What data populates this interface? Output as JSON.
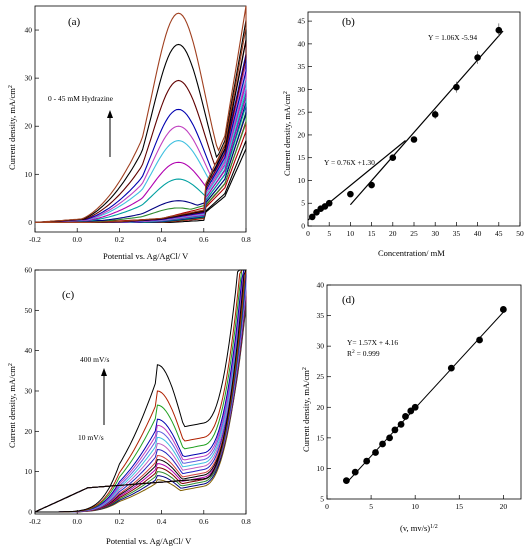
{
  "chart_data": [
    {
      "panel": "(a)",
      "type": "line",
      "xlabel": "Potential vs. Ag/AgCl/ V",
      "ylabel": "Current density, mA/cm",
      "ylabel_sup": "2",
      "xlim": [
        -0.2,
        0.8
      ],
      "ylim": [
        -2,
        45
      ],
      "xticks": [
        -0.2,
        0.0,
        0.2,
        0.4,
        0.6,
        0.8
      ],
      "xtick_labels": [
        "-0.2",
        "0.0",
        "0.2",
        "0.4",
        "0.6",
        "0.8"
      ],
      "yticks": [
        0,
        10,
        20,
        30,
        40
      ],
      "ytick_labels": [
        "0",
        "10",
        "20",
        "30",
        "40"
      ],
      "annotation": "0 - 45 mM Hydrazine",
      "series": [
        {
          "color": "#000000",
          "peak": 0.0,
          "base": [
            0,
            0.2,
            0.5,
            2,
            6,
            17
          ]
        },
        {
          "color": "#b00000",
          "peak": 0.5,
          "base": [
            0,
            0.3,
            0.8,
            3,
            8,
            21
          ]
        },
        {
          "color": "#2e8b2e",
          "peak": 3.0,
          "base": [
            0,
            0.4,
            1.0,
            3.5,
            9,
            23
          ]
        },
        {
          "color": "#000080",
          "peak": 4.5,
          "base": [
            0,
            0.5,
            1.2,
            4,
            10,
            25
          ]
        },
        {
          "color": "#00a0a0",
          "peak": 9.0,
          "base": [
            0,
            0.6,
            1.5,
            4.5,
            11,
            27
          ]
        },
        {
          "color": "#b000b0",
          "peak": 12.5,
          "base": [
            0,
            0.7,
            1.8,
            5,
            12,
            29
          ]
        },
        {
          "color": "#40c0e0",
          "peak": 17.0,
          "base": [
            0,
            0.8,
            2.0,
            5.5,
            13,
            31
          ]
        },
        {
          "color": "#c040c0",
          "peak": 20.0,
          "base": [
            0,
            0.9,
            2.2,
            6,
            14,
            33
          ]
        },
        {
          "color": "#0000b0",
          "peak": 23.5,
          "base": [
            0,
            1.0,
            2.5,
            6.5,
            15,
            35
          ]
        },
        {
          "color": "#600000",
          "peak": 29.5,
          "base": [
            0,
            1.1,
            2.8,
            7,
            16,
            38
          ]
        },
        {
          "color": "#000000",
          "peak": 37.0,
          "base": [
            0,
            1.2,
            3.0,
            7.5,
            17,
            42
          ]
        },
        {
          "color": "#a04020",
          "peak": 43.5,
          "base": [
            0,
            1.3,
            3.2,
            8,
            18,
            45
          ]
        }
      ]
    },
    {
      "panel": "(b)",
      "type": "scatter",
      "xlabel": "Concentration/ mM",
      "ylabel": "Current density, mA/cm",
      "ylabel_sup": "2",
      "xlim": [
        0,
        50
      ],
      "ylim": [
        0,
        47
      ],
      "xticks": [
        0,
        5,
        10,
        15,
        20,
        25,
        30,
        35,
        40,
        45,
        50
      ],
      "xtick_labels": [
        "0",
        "5",
        "10",
        "15",
        "20",
        "25",
        "30",
        "35",
        "40",
        "45",
        "50"
      ],
      "yticks": [
        0,
        5,
        10,
        15,
        20,
        25,
        30,
        35,
        40,
        45
      ],
      "ytick_labels": [
        "0",
        "5",
        "10",
        "15",
        "20",
        "25",
        "30",
        "35",
        "40",
        "45"
      ],
      "points": [
        {
          "x": 1,
          "y": 2
        },
        {
          "x": 2,
          "y": 3
        },
        {
          "x": 3,
          "y": 3.8
        },
        {
          "x": 4,
          "y": 4.3
        },
        {
          "x": 5,
          "y": 5
        },
        {
          "x": 10,
          "y": 7
        },
        {
          "x": 15,
          "y": 9
        },
        {
          "x": 20,
          "y": 15
        },
        {
          "x": 25,
          "y": 19
        },
        {
          "x": 30,
          "y": 24.5
        },
        {
          "x": 35,
          "y": 30.5
        },
        {
          "x": 40,
          "y": 37
        },
        {
          "x": 45,
          "y": 43
        }
      ],
      "errors": [
        0.3,
        0.3,
        0.3,
        0.3,
        0.4,
        0.4,
        0.5,
        0.6,
        0.6,
        1.0,
        1.2,
        1.4,
        1.5
      ],
      "fits": [
        {
          "label": "Y = 0.76X +1.30",
          "slope": 0.76,
          "intercept": 1.3,
          "x_range": [
            0,
            23
          ]
        },
        {
          "label": "Y = 1.06X -5.94",
          "slope": 1.06,
          "intercept": -5.94,
          "x_range": [
            10,
            46
          ]
        }
      ]
    },
    {
      "panel": "(c)",
      "type": "line",
      "xlabel": "Potential vs. Ag/AgCl/ V",
      "ylabel": "Current density, mA/cm",
      "ylabel_sup": "2",
      "xlim": [
        -0.2,
        0.8
      ],
      "ylim": [
        -0.5,
        60
      ],
      "xticks": [
        -0.2,
        0.0,
        0.2,
        0.4,
        0.6,
        0.8
      ],
      "xtick_labels": [
        "-0.2",
        "0.0",
        "0.2",
        "0.4",
        "0.6",
        "0.8"
      ],
      "yticks": [
        0,
        10,
        20,
        30,
        40,
        50,
        60
      ],
      "ytick_labels": [
        "0",
        "10",
        "20",
        "30",
        "40",
        "50",
        "60"
      ],
      "annotation_top": "400 mV/s",
      "annotation_bottom": "10 mV/s",
      "series": [
        {
          "color": "#806000",
          "peak": 8
        },
        {
          "color": "#000080",
          "peak": 9
        },
        {
          "color": "#2e8b2e",
          "peak": 10
        },
        {
          "color": "#800000",
          "peak": 11
        },
        {
          "color": "#b000b0",
          "peak": 12
        },
        {
          "color": "#000000",
          "peak": 13
        },
        {
          "color": "#d04040",
          "peak": 14
        },
        {
          "color": "#2020c0",
          "peak": 15.5
        },
        {
          "color": "#c060c0",
          "peak": 17
        },
        {
          "color": "#40c0e0",
          "peak": 18.5
        },
        {
          "color": "#6060e0",
          "peak": 20
        },
        {
          "color": "#c040c0",
          "peak": 21.5
        },
        {
          "color": "#0000b0",
          "peak": 23
        },
        {
          "color": "#20a020",
          "peak": 26.5
        },
        {
          "color": "#b02000",
          "peak": 30
        },
        {
          "color": "#000000",
          "peak": 36.5
        }
      ]
    },
    {
      "panel": "(d)",
      "type": "scatter",
      "xlabel": "(v, mv/s)",
      "xlabel_sup": "1/2",
      "ylabel": "Current density, mA/cm",
      "ylabel_sup": "2",
      "xlim": [
        0,
        22
      ],
      "ylim": [
        5,
        40
      ],
      "xticks": [
        0,
        5,
        10,
        15,
        20
      ],
      "xtick_labels": [
        "0",
        "5",
        "10",
        "15",
        "20"
      ],
      "yticks": [
        5,
        10,
        15,
        20,
        25,
        30,
        35,
        40
      ],
      "ytick_labels": [
        "5",
        "10",
        "15",
        "20",
        "25",
        "30",
        "35",
        "40"
      ],
      "points": [
        {
          "x": 2.2,
          "y": 8
        },
        {
          "x": 3.2,
          "y": 9.4
        },
        {
          "x": 4.5,
          "y": 11.2
        },
        {
          "x": 5.5,
          "y": 12.6
        },
        {
          "x": 6.3,
          "y": 14
        },
        {
          "x": 7.1,
          "y": 15
        },
        {
          "x": 7.7,
          "y": 16.3
        },
        {
          "x": 8.4,
          "y": 17.2
        },
        {
          "x": 8.9,
          "y": 18.5
        },
        {
          "x": 9.5,
          "y": 19.4
        },
        {
          "x": 10,
          "y": 20
        },
        {
          "x": 14.1,
          "y": 26.4
        },
        {
          "x": 17.3,
          "y": 31
        },
        {
          "x": 20,
          "y": 36
        }
      ],
      "fits": [
        {
          "label": "Y= 1.57X + 4.16",
          "slope": 1.57,
          "intercept": 4.16,
          "x_range": [
            2.2,
            20
          ]
        }
      ],
      "r2_prefix": "R",
      "r2_sup": "2",
      "r2_value": " = 0.999"
    }
  ]
}
